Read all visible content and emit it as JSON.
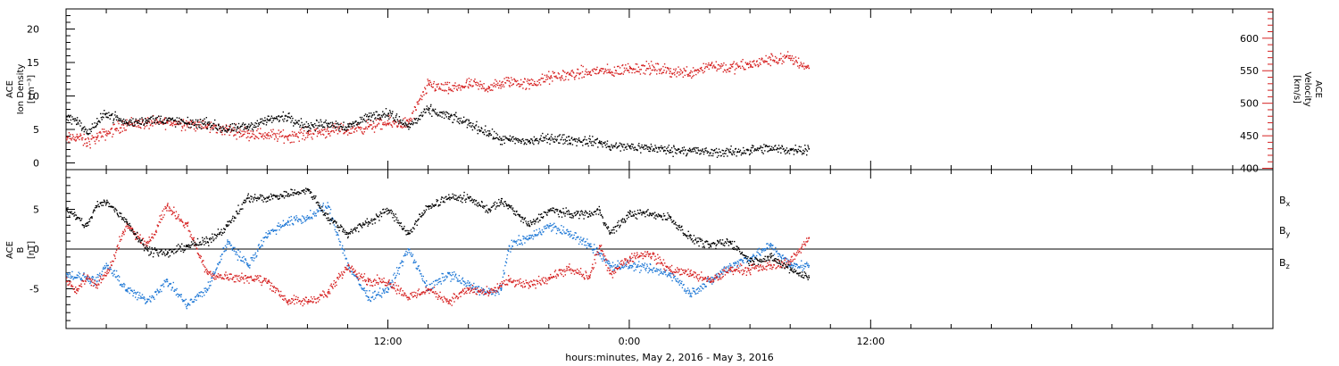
{
  "xaxis": {
    "title": "hours:minutes, May  2, 2016 - May  3, 2016",
    "range_hours": [
      0,
      60
    ],
    "ticks": [
      {
        "hour": 16,
        "label": "12:00"
      },
      {
        "hour": 28,
        "label": "0:00"
      },
      {
        "hour": 40,
        "label": "12:00"
      }
    ]
  },
  "chart_data": [
    {
      "type": "scatter",
      "panel": "top",
      "left_axis": {
        "label_lines": [
          "ACE",
          "Ion Density",
          "[cm⁻³]"
        ],
        "ylim": [
          -1,
          23
        ],
        "ticks": [
          0,
          5,
          10,
          15,
          20
        ],
        "tick_labels": [
          "0",
          "5",
          "10",
          "15",
          "20"
        ],
        "color": "#000000"
      },
      "right_axis": {
        "label_lines": [
          "ACE",
          "Velocity",
          "[km/s]"
        ],
        "ylim": [
          398,
          645
        ],
        "ticks": [
          400,
          450,
          500,
          550,
          600
        ],
        "tick_labels": [
          "400",
          "450",
          "500",
          "550",
          "600"
        ],
        "color": "#d62020"
      },
      "series": [
        {
          "axis": "left",
          "color": "#000000",
          "x_hours": [
            0.0,
            0.5,
            1.0,
            1.5,
            2.0,
            3.0,
            4.0,
            5.0,
            6.0,
            7.0,
            8.0,
            9.0,
            10.0,
            11.0,
            12.0,
            13.0,
            14.0,
            15.0,
            16.0,
            17.0,
            18.0,
            19.0,
            20.0,
            21.0,
            21.6,
            22.0,
            23.0,
            24.0,
            25.0,
            26.0,
            26.5,
            27.0,
            28.0,
            29.0,
            30.0,
            31.0,
            32.0,
            33.0,
            34.0,
            35.0,
            36.0,
            36.9
          ],
          "values": [
            7.0,
            6.5,
            4.5,
            6.0,
            7.5,
            6.0,
            6.5,
            6.5,
            6.0,
            6.0,
            5.0,
            5.5,
            6.5,
            7.0,
            5.5,
            6.0,
            5.5,
            7.0,
            7.5,
            5.5,
            8.0,
            7.0,
            6.0,
            4.5,
            3.5,
            3.5,
            3.3,
            3.8,
            3.5,
            3.3,
            3.2,
            2.5,
            2.5,
            2.3,
            2.0,
            2.0,
            1.6,
            1.7,
            2.0,
            2.2,
            2.0,
            2.2
          ]
        },
        {
          "axis": "right",
          "color": "#d62020",
          "x_hours": [
            0.0,
            0.5,
            1.0,
            1.5,
            2.0,
            3.0,
            4.0,
            5.0,
            6.0,
            7.0,
            8.0,
            9.0,
            10.0,
            11.0,
            12.0,
            13.0,
            14.0,
            15.0,
            16.0,
            17.0,
            18.0,
            19.0,
            20.0,
            21.0,
            21.6,
            22.0,
            23.0,
            24.0,
            25.0,
            26.0,
            26.5,
            27.0,
            28.0,
            29.0,
            30.0,
            31.0,
            32.0,
            33.0,
            34.0,
            35.0,
            36.0,
            36.9
          ],
          "values": [
            445,
            450,
            440,
            448,
            455,
            470,
            470,
            472,
            470,
            465,
            460,
            455,
            452,
            450,
            455,
            458,
            460,
            465,
            470,
            470,
            530,
            522,
            530,
            525,
            530,
            535,
            530,
            540,
            545,
            548,
            552,
            548,
            555,
            555,
            550,
            548,
            560,
            555,
            560,
            568,
            570,
            555
          ]
        }
      ]
    },
    {
      "type": "scatter",
      "panel": "bottom",
      "left_axis": {
        "label_lines": [
          "ACE",
          "B",
          "[nT]"
        ],
        "ylim": [
          -10,
          10
        ],
        "ticks": [
          -5,
          0,
          5
        ],
        "tick_labels": [
          "-5",
          "0",
          "5"
        ],
        "zero_line": true
      },
      "legend": [
        {
          "label": "B",
          "sub": "x",
          "color": "#000000"
        },
        {
          "label": "B",
          "sub": "y",
          "color": "#1f78d6"
        },
        {
          "label": "B",
          "sub": "z",
          "color": "#d62020"
        }
      ],
      "series": [
        {
          "name": "Bx",
          "color": "#000000",
          "x_hours": [
            0.0,
            0.5,
            1.0,
            1.5,
            2.0,
            3.0,
            4.0,
            5.0,
            6.0,
            7.0,
            8.0,
            9.0,
            10.0,
            11.0,
            12.0,
            13.0,
            14.0,
            15.0,
            16.0,
            17.0,
            18.0,
            19.0,
            20.0,
            21.0,
            21.6,
            22.0,
            23.0,
            24.0,
            25.0,
            26.0,
            26.5,
            27.0,
            28.0,
            29.0,
            30.0,
            31.0,
            32.0,
            33.0,
            34.0,
            35.0,
            36.0,
            36.9
          ],
          "values": [
            5.0,
            4.0,
            3.0,
            5.5,
            6.0,
            3.5,
            0.0,
            -0.5,
            0.5,
            1.0,
            3.0,
            6.5,
            6.5,
            7.0,
            7.5,
            4.0,
            2.0,
            3.5,
            5.0,
            2.0,
            5.5,
            6.5,
            6.5,
            5.0,
            6.0,
            5.5,
            3.0,
            5.0,
            4.5,
            4.5,
            5.0,
            2.0,
            4.5,
            4.5,
            4.0,
            1.5,
            0.5,
            1.0,
            -1.5,
            -1.0,
            -2.5,
            -3.5
          ]
        },
        {
          "name": "By",
          "color": "#1f78d6",
          "x_hours": [
            0.0,
            0.5,
            1.0,
            1.5,
            2.0,
            3.0,
            4.0,
            5.0,
            6.0,
            7.0,
            8.0,
            9.0,
            10.0,
            11.0,
            12.0,
            13.0,
            14.0,
            15.0,
            16.0,
            17.0,
            18.0,
            19.0,
            20.0,
            21.0,
            21.6,
            22.0,
            23.0,
            24.0,
            25.0,
            26.0,
            26.5,
            27.0,
            28.0,
            29.0,
            30.0,
            31.0,
            32.0,
            33.0,
            34.0,
            35.0,
            36.0,
            36.9
          ],
          "values": [
            -3.0,
            -3.5,
            -3.5,
            -4.0,
            -2.0,
            -5.0,
            -6.5,
            -4.0,
            -7.0,
            -5.0,
            1.0,
            -2.0,
            2.0,
            3.5,
            4.0,
            5.5,
            -2.0,
            -6.0,
            -5.0,
            0.0,
            -5.0,
            -3.0,
            -4.5,
            -5.5,
            -5.0,
            0.5,
            1.5,
            3.0,
            2.0,
            0.5,
            -0.5,
            -2.0,
            -2.0,
            -2.5,
            -3.0,
            -5.5,
            -4.0,
            -2.0,
            -1.0,
            0.5,
            -2.0,
            -2.0
          ]
        },
        {
          "name": "Bz",
          "color": "#d62020",
          "x_hours": [
            0.0,
            0.5,
            1.0,
            1.5,
            2.0,
            3.0,
            4.0,
            5.0,
            6.0,
            7.0,
            8.0,
            9.0,
            10.0,
            11.0,
            12.0,
            13.0,
            14.0,
            15.0,
            16.0,
            17.0,
            18.0,
            19.0,
            20.0,
            21.0,
            21.6,
            22.0,
            23.0,
            24.0,
            25.0,
            26.0,
            26.5,
            27.0,
            28.0,
            29.0,
            30.0,
            31.0,
            32.0,
            33.0,
            34.0,
            35.0,
            36.0,
            36.9
          ],
          "values": [
            -4.0,
            -5.0,
            -3.5,
            -4.5,
            -3.0,
            3.0,
            0.5,
            5.5,
            3.0,
            -3.0,
            -3.5,
            -3.5,
            -4.0,
            -6.5,
            -6.5,
            -5.5,
            -2.0,
            -4.0,
            -4.0,
            -6.0,
            -5.0,
            -6.5,
            -5.0,
            -5.5,
            -4.5,
            -4.0,
            -4.5,
            -3.5,
            -2.5,
            -3.5,
            0.5,
            -3.0,
            -1.0,
            -0.5,
            -2.5,
            -3.0,
            -4.0,
            -2.5,
            -2.5,
            -2.0,
            -1.5,
            1.5
          ]
        }
      ]
    }
  ]
}
